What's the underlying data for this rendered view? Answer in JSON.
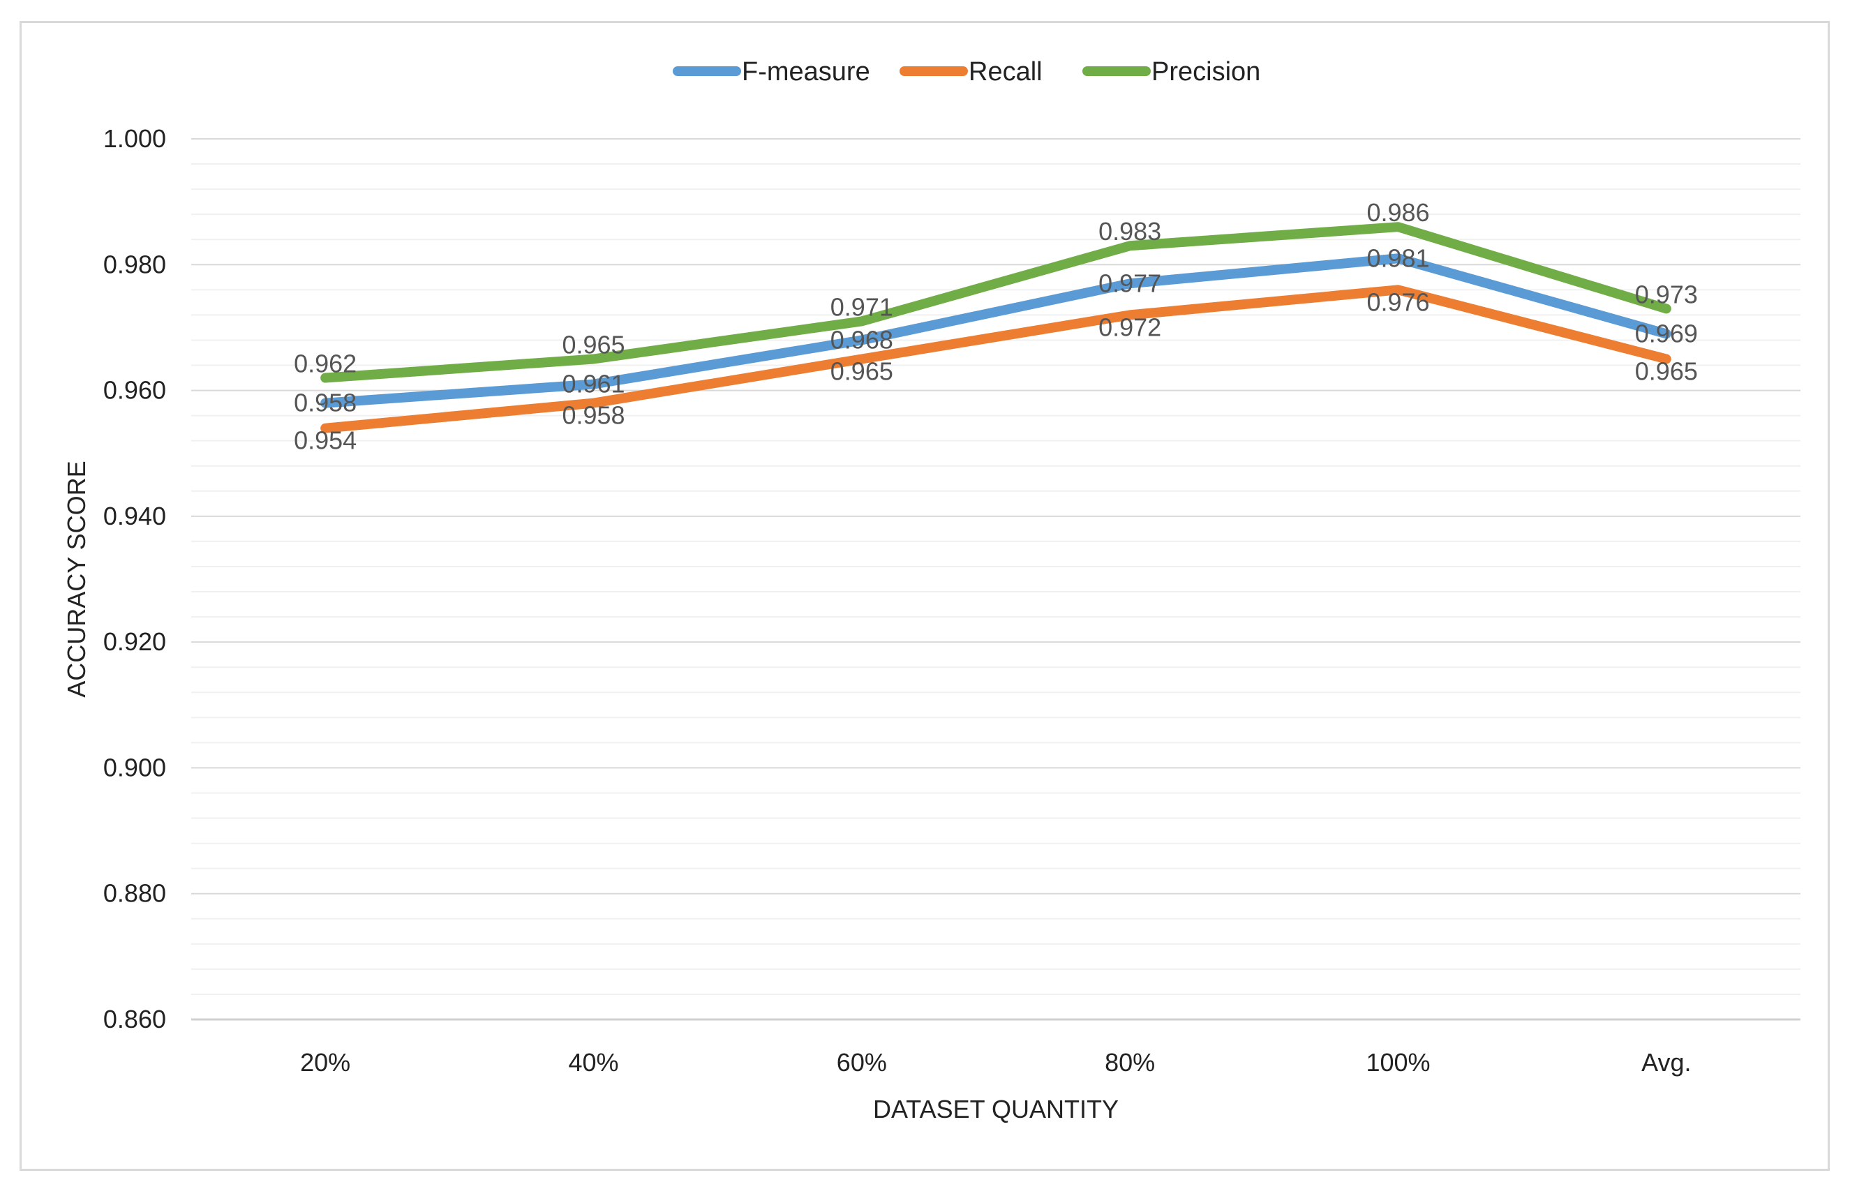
{
  "chart_data": {
    "type": "line",
    "title": "",
    "xlabel": "DATASET QUANTITY",
    "ylabel": "ACCURACY SCORE",
    "categories": [
      "20%",
      "40%",
      "60%",
      "80%",
      "100%",
      "Avg."
    ],
    "ylim": [
      0.86,
      1.0
    ],
    "yticks": [
      "0.860",
      "0.880",
      "0.900",
      "0.920",
      "0.940",
      "0.960",
      "0.980",
      "1.000"
    ],
    "grid": true,
    "legend_position": "top-center",
    "series": [
      {
        "name": "F-measure",
        "color": "#5b9bd5",
        "values": [
          0.958,
          0.961,
          0.968,
          0.977,
          0.981,
          0.969
        ],
        "labels": [
          "0.958",
          "0.961",
          "0.968",
          "0.977",
          "0.981",
          "0.969"
        ]
      },
      {
        "name": "Recall",
        "color": "#ed7d31",
        "values": [
          0.954,
          0.958,
          0.965,
          0.972,
          0.976,
          0.965
        ],
        "labels": [
          "0.954",
          "0.958",
          "0.965",
          "0.972",
          "0.976",
          "0.965"
        ]
      },
      {
        "name": "Precision",
        "color": "#70ad47",
        "values": [
          0.962,
          0.965,
          0.971,
          0.983,
          0.986,
          0.973
        ],
        "labels": [
          "0.962",
          "0.965",
          "0.971",
          "0.983",
          "0.986",
          "0.973"
        ]
      }
    ]
  }
}
